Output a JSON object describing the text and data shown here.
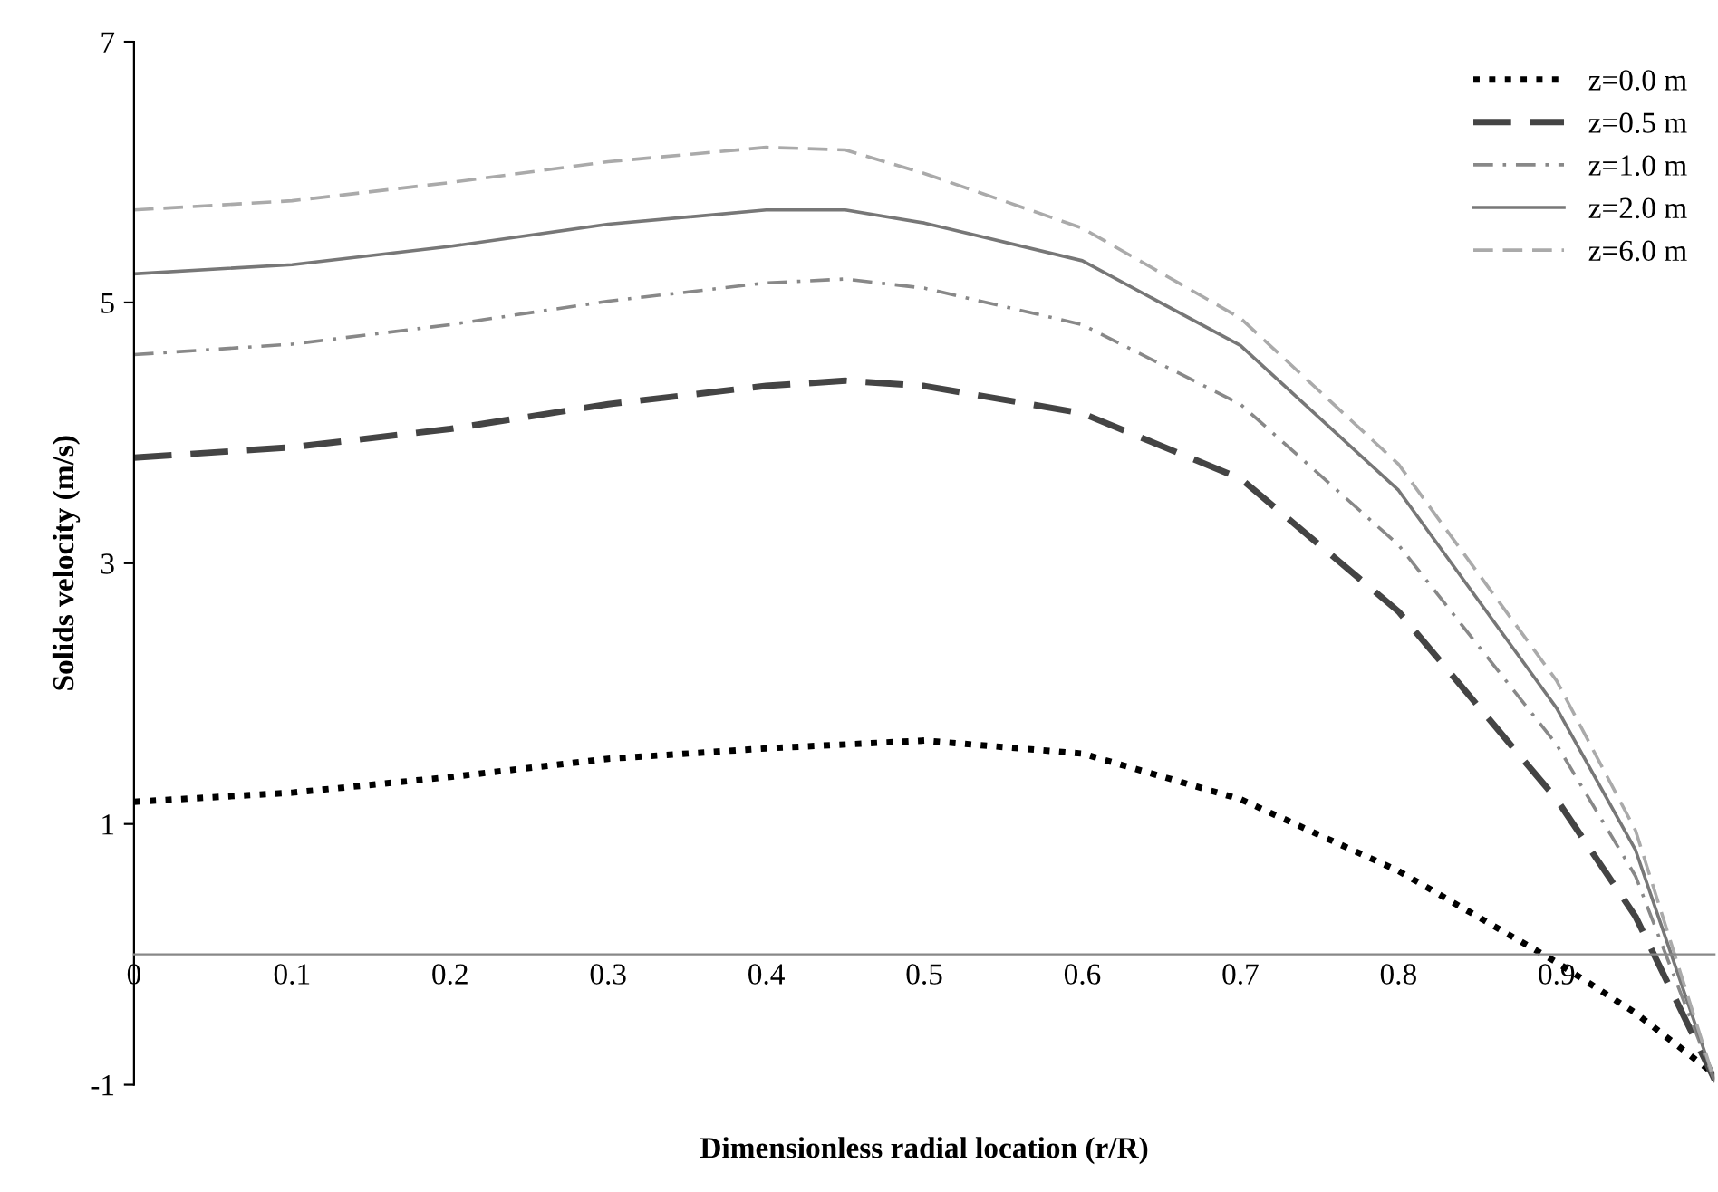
{
  "chart_data": {
    "type": "line",
    "xlabel": "Dimensionless radial location (r/R)",
    "ylabel": "Solids velocity (m/s)",
    "x": [
      0,
      0.1,
      0.2,
      0.3,
      0.4,
      0.45,
      0.5,
      0.6,
      0.7,
      0.8,
      0.9,
      0.95,
      1.0
    ],
    "series": [
      {
        "name": "z=0.0 m",
        "color": "#000000",
        "line_style": "dotted",
        "values": [
          1.17,
          1.24,
          1.36,
          1.5,
          1.58,
          1.61,
          1.64,
          1.54,
          1.19,
          0.64,
          -0.06,
          -0.45,
          -0.92
        ]
      },
      {
        "name": "z=0.5 m",
        "color": "#444444",
        "line_style": "dashed",
        "values": [
          3.81,
          3.89,
          4.03,
          4.22,
          4.36,
          4.4,
          4.36,
          4.15,
          3.65,
          2.63,
          1.19,
          0.29,
          -0.96
        ]
      },
      {
        "name": "z=1.0 m",
        "color": "#888888",
        "line_style": "dashdot",
        "values": [
          4.6,
          4.68,
          4.83,
          5.01,
          5.15,
          5.18,
          5.11,
          4.83,
          4.22,
          3.14,
          1.61,
          0.6,
          -0.97
        ]
      },
      {
        "name": "z=2.0 m",
        "color": "#777777",
        "line_style": "solid",
        "values": [
          5.22,
          5.29,
          5.43,
          5.6,
          5.71,
          5.71,
          5.61,
          5.32,
          4.67,
          3.56,
          1.89,
          0.8,
          -0.97
        ]
      },
      {
        "name": "z=6.0 m",
        "color": "#aaaaaa",
        "line_style": "dashed",
        "values": [
          5.71,
          5.78,
          5.92,
          6.08,
          6.19,
          6.17,
          5.99,
          5.57,
          4.88,
          3.76,
          2.1,
          0.95,
          -0.97
        ]
      }
    ],
    "xlim": [
      0,
      1
    ],
    "xticks": [
      {
        "value": 0,
        "label": "0"
      },
      0.1,
      0.2,
      0.3,
      0.4,
      0.5,
      0.6,
      0.7,
      0.8,
      0.9
    ],
    "ylim": [
      -1,
      7
    ],
    "yticks": [
      -1,
      1,
      3,
      5,
      7
    ],
    "grid": false,
    "legend": "top right"
  }
}
